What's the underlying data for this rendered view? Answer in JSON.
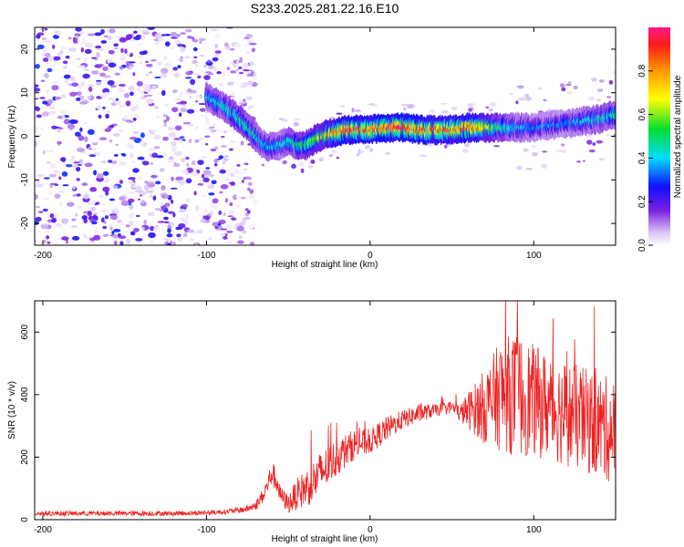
{
  "figure_title": "S233.2025.281.22.16.E10",
  "chart_data": [
    {
      "type": "heatmap",
      "title": "S233.2025.281.22.16.E10",
      "xlabel": "Height of straight line (km)",
      "ylabel": "Frequency (Hz)",
      "xlim": [
        -205,
        150
      ],
      "ylim": [
        -25,
        25
      ],
      "xticks": [
        -200,
        -100,
        0,
        100
      ],
      "yticks": [
        -20,
        -10,
        0,
        10,
        20
      ],
      "grid": false,
      "colorbar": {
        "label": "Normalized spectral amplitude",
        "range": [
          0.0,
          1.0
        ],
        "ticks": [
          0.0,
          0.2,
          0.4,
          0.6,
          0.8
        ],
        "tick_labels": [
          "0.0",
          "0.2",
          "0.4",
          "0.6",
          "0.8"
        ]
      },
      "ridge": {
        "name": "dominant frequency",
        "x": [
          -100,
          -90,
          -80,
          -75,
          -70,
          -65,
          -60,
          -55,
          -50,
          -45,
          -40,
          -35,
          -30,
          -25,
          -20,
          -15,
          -10,
          -5,
          0,
          10,
          20,
          30,
          40,
          50,
          60,
          70,
          80,
          90,
          100,
          110,
          120,
          130,
          140,
          150
        ],
        "y": [
          9,
          7,
          4,
          2,
          0,
          -2,
          -2.5,
          -2,
          -1,
          -2,
          -2,
          -1,
          0,
          0.5,
          1,
          1.5,
          1.5,
          1.5,
          1.5,
          2,
          2,
          1.5,
          1.5,
          1.5,
          2,
          2,
          2,
          2,
          2,
          2.5,
          3,
          3.5,
          4,
          5
        ],
        "amplitude": [
          0.4,
          0.45,
          0.5,
          0.5,
          0.45,
          0.4,
          0.4,
          0.4,
          0.45,
          0.5,
          0.55,
          0.6,
          0.65,
          0.75,
          0.85,
          0.9,
          0.9,
          0.85,
          0.85,
          0.9,
          0.95,
          0.9,
          0.85,
          0.85,
          0.9,
          0.7,
          0.5,
          0.4,
          0.35,
          0.35,
          0.35,
          0.4,
          0.45,
          0.45
        ]
      },
      "noise_region": {
        "x_range": [
          -205,
          -80
        ],
        "y_range": [
          -25,
          25
        ],
        "amplitude_range": [
          0.02,
          0.3
        ]
      }
    },
    {
      "type": "line",
      "xlabel": "Height of straight line (km)",
      "ylabel": "SNR (10 * v/v)",
      "xlim": [
        -205,
        150
      ],
      "ylim": [
        0,
        700
      ],
      "xticks": [
        -200,
        -100,
        0,
        100
      ],
      "yticks": [
        0,
        200,
        400,
        600
      ],
      "grid": false,
      "series": [
        {
          "name": "SNR",
          "color": "#ee2222",
          "x": [
            -205,
            -180,
            -150,
            -120,
            -100,
            -90,
            -80,
            -75,
            -70,
            -65,
            -60,
            -57,
            -55,
            -50,
            -45,
            -40,
            -35,
            -30,
            -20,
            -10,
            0,
            10,
            20,
            30,
            40,
            50,
            55,
            60,
            70,
            80,
            90,
            100,
            110,
            120,
            130,
            140,
            150
          ],
          "y": [
            20,
            20,
            20,
            20,
            22,
            25,
            30,
            35,
            45,
            80,
            150,
            120,
            80,
            50,
            80,
            100,
            120,
            150,
            200,
            240,
            250,
            290,
            320,
            340,
            350,
            360,
            340,
            350,
            360,
            400,
            400,
            380,
            360,
            340,
            320,
            300,
            280
          ],
          "spread": [
            8,
            8,
            8,
            8,
            8,
            8,
            10,
            12,
            15,
            25,
            40,
            40,
            30,
            30,
            50,
            60,
            70,
            70,
            60,
            50,
            40,
            40,
            30,
            30,
            20,
            20,
            30,
            60,
            120,
            180,
            200,
            180,
            170,
            170,
            170,
            170,
            170
          ]
        }
      ]
    }
  ]
}
